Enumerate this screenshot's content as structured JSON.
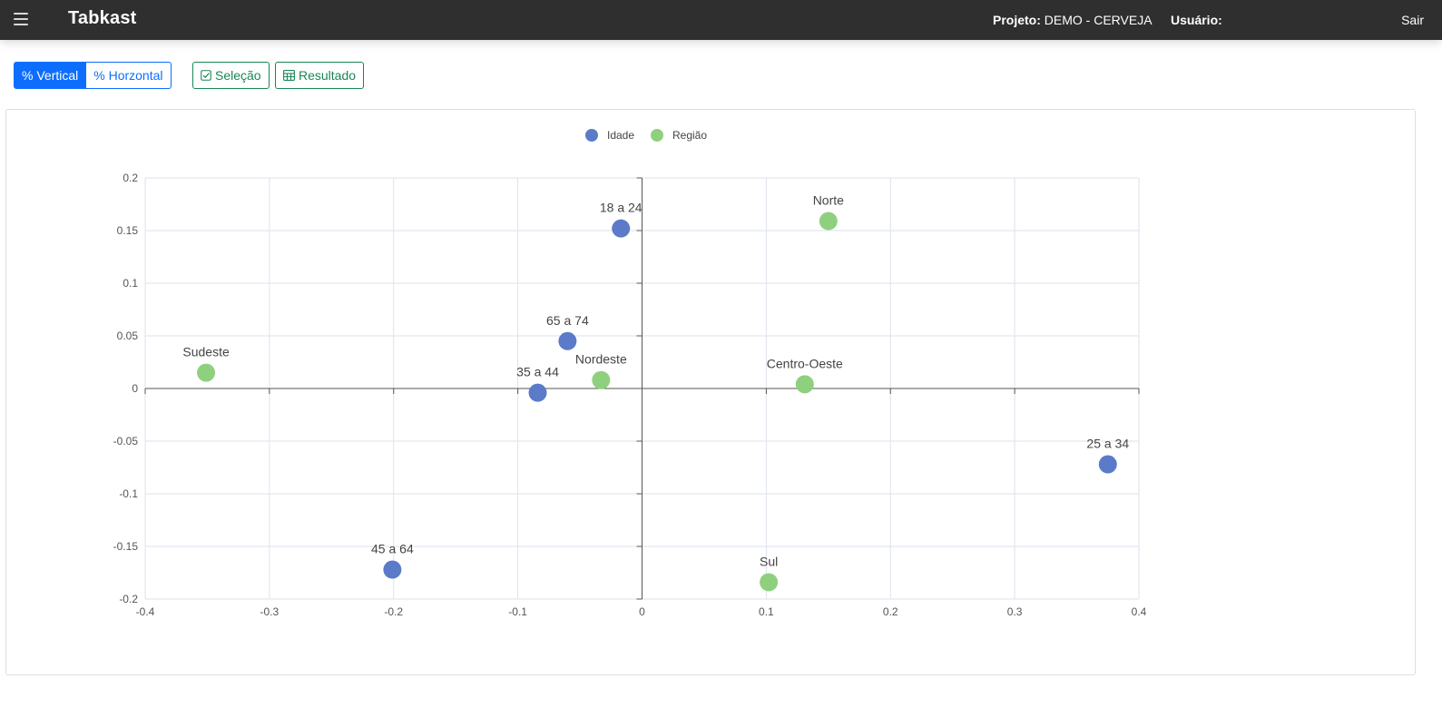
{
  "app": {
    "title": "Tabkast",
    "menu_icon": "hamburger-icon"
  },
  "header": {
    "project_label": "Projeto:",
    "project_value": "DEMO - CERVEJA",
    "user_label": "Usuário:",
    "user_value": "",
    "logout_label": "Sair"
  },
  "toolbar": {
    "vertical_label": "% Vertical",
    "horizontal_label": "% Horzontal",
    "selecao_label": "Seleção",
    "selecao_icon": "check-square-icon",
    "resultado_label": "Resultado",
    "resultado_icon": "table-icon",
    "primary_color": "#0d6efd",
    "success_color": "#198754"
  },
  "chart_data": {
    "type": "scatter",
    "xlim": [
      -0.4,
      0.4
    ],
    "ylim": [
      -0.2,
      0.2
    ],
    "x_ticks": [
      -0.4,
      -0.3,
      -0.2,
      -0.1,
      0,
      0.1,
      0.2,
      0.3,
      0.4
    ],
    "x_tick_labels": [
      "-0.4",
      "-0.3",
      "-0.2",
      "-0.1",
      "0",
      "0.1",
      "0.2",
      "0.3",
      "0.4"
    ],
    "y_ticks": [
      0.2,
      0.15,
      0.1,
      0.05,
      0,
      -0.05,
      -0.1,
      -0.15,
      -0.2
    ],
    "y_tick_labels": [
      "0.2",
      "0.15",
      "0.1",
      "0.05",
      "0",
      "-0.05",
      "-0.1",
      "-0.15",
      "-0.2"
    ],
    "grid": true,
    "legend_position": "top-center",
    "series": [
      {
        "name": "Idade",
        "color": "#5b7bc9",
        "points": [
          {
            "label": "18 a 24",
            "x": -0.017,
            "y": 0.152
          },
          {
            "label": "65 a 74",
            "x": -0.06,
            "y": 0.045
          },
          {
            "label": "35 a 44",
            "x": -0.084,
            "y": -0.004
          },
          {
            "label": "25 a 34",
            "x": 0.375,
            "y": -0.072
          },
          {
            "label": "45 a 64",
            "x": -0.201,
            "y": -0.172
          }
        ]
      },
      {
        "name": "Região",
        "color": "#8fd07f",
        "points": [
          {
            "label": "Norte",
            "x": 0.15,
            "y": 0.159
          },
          {
            "label": "Sudeste",
            "x": -0.351,
            "y": 0.015
          },
          {
            "label": "Nordeste",
            "x": -0.033,
            "y": 0.008
          },
          {
            "label": "Centro-Oeste",
            "x": 0.131,
            "y": 0.004
          },
          {
            "label": "Sul",
            "x": 0.102,
            "y": -0.184
          }
        ]
      }
    ]
  }
}
